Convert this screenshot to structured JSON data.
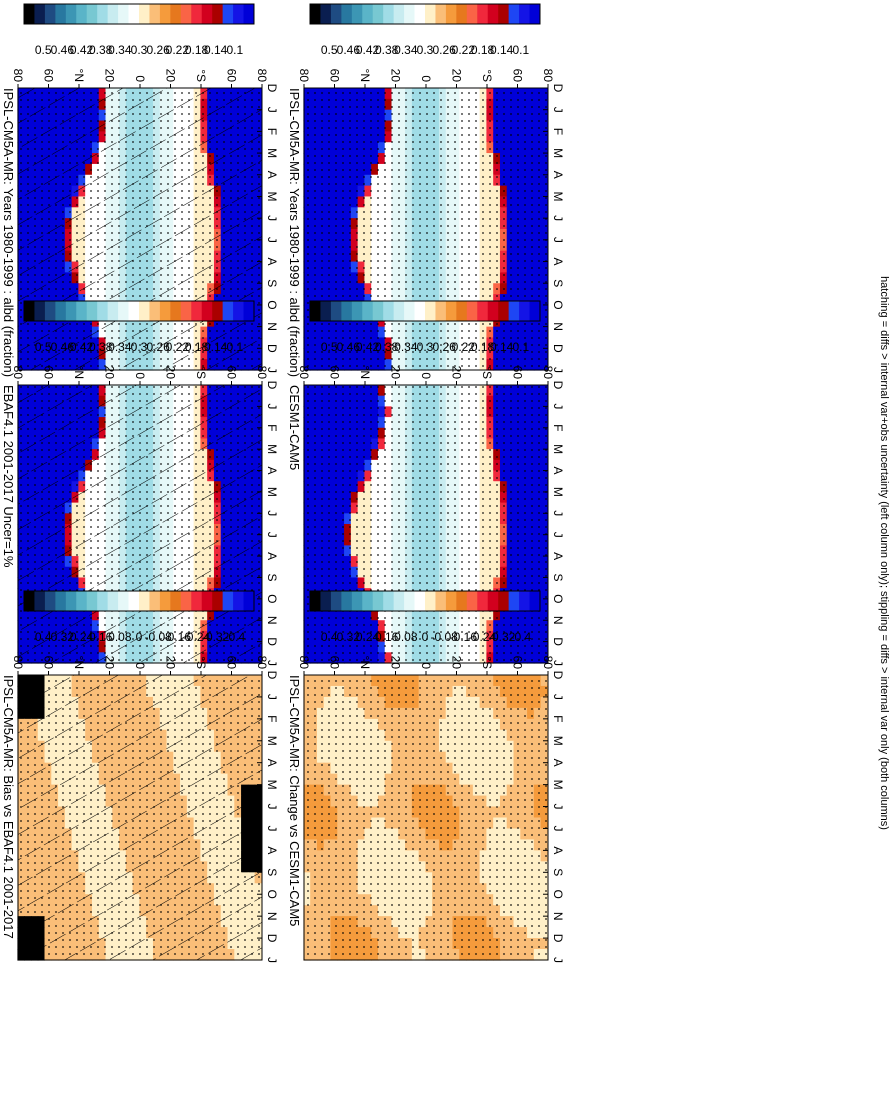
{
  "figure": {
    "footnote": "hatching = diffs > internal var+obs uncertainty (left column only); stippling = diffs > internal var only (both columns)"
  },
  "months": [
    "D",
    "J",
    "F",
    "M",
    "A",
    "M",
    "J",
    "J",
    "A",
    "S",
    "O",
    "N",
    "D",
    "J"
  ],
  "lat_ticks": [
    "80",
    "60",
    "°N",
    "20",
    "0",
    "20",
    "°S",
    "60",
    "80"
  ],
  "colorscales": {
    "albedo": {
      "labels": [
        "0.5",
        "0.46",
        "0.42",
        "0.38",
        "0.34",
        "0.3",
        "0.26",
        "0.22",
        "0.18",
        "0.14",
        "0.1"
      ],
      "colors": [
        "#0000d8",
        "#1414e6",
        "#1e46f4",
        "#aa0000",
        "#d2001e",
        "#f0283c",
        "#fa6446",
        "#e6781e",
        "#f59b3c",
        "#fabe78",
        "#fff0c8",
        "#ffffff",
        "#e6f8f8",
        "#c8ecf0",
        "#a0dce6",
        "#78c8d2",
        "#5ab4c8",
        "#3c96b4",
        "#2878a0",
        "#1e4b82",
        "#0a1e50",
        "#000000"
      ]
    },
    "difference": {
      "labels": [
        "0.4",
        "0.32",
        "0.24",
        "0.16",
        "0.08",
        "0",
        "-0.08",
        "-0.16",
        "-0.24",
        "-0.32",
        "-0.4"
      ],
      "colors": [
        "#0000d8",
        "#1414e6",
        "#1e46f4",
        "#aa0000",
        "#d2001e",
        "#f0283c",
        "#fa6446",
        "#e6781e",
        "#f59b3c",
        "#fabe78",
        "#fff0c8",
        "#ffffff",
        "#e6f8f8",
        "#c8ecf0",
        "#a0dce6",
        "#78c8d2",
        "#5ab4c8",
        "#3c96b4",
        "#2878a0",
        "#1e4b82",
        "#0a1e50",
        "#000000"
      ]
    }
  },
  "chart_data": [
    {
      "type": "heatmap",
      "panel": "left-top",
      "title": "IPSL-CM5A-MR: Years 1980-1999 : albd (fraction)",
      "field": "albedo",
      "x": [
        "D",
        "J",
        "F",
        "M",
        "A",
        "M",
        "J",
        "J",
        "A",
        "S",
        "O",
        "N",
        "D",
        "J"
      ],
      "y": [
        "80",
        "60",
        "°N",
        "20",
        "0",
        "20",
        "°S",
        "60",
        "80"
      ],
      "overlay": "hatching+stippling",
      "hatching": true,
      "stippling": true
    },
    {
      "type": "heatmap",
      "panel": "right-top",
      "title": "IPSL-CM5A-MR: Years 1980-1999 : albd (fraction)",
      "field": "albedo",
      "x": [
        "D",
        "J",
        "F",
        "M",
        "A",
        "M",
        "J",
        "J",
        "A",
        "S",
        "O",
        "N",
        "D",
        "J"
      ],
      "y": [
        "80",
        "60",
        "°N",
        "20",
        "0",
        "20",
        "°S",
        "60",
        "80"
      ],
      "overlay": "stippling",
      "hatching": false,
      "stippling": true
    },
    {
      "type": "heatmap",
      "panel": "left-middle",
      "title": "EBAF4.1 2001-2017 Uncer=1%",
      "field": "albedo",
      "x": [
        "D",
        "J",
        "F",
        "M",
        "A",
        "M",
        "J",
        "J",
        "A",
        "S",
        "O",
        "N",
        "D",
        "J"
      ],
      "y": [
        "80",
        "60",
        "°N",
        "20",
        "0",
        "20",
        "°S",
        "60",
        "80"
      ],
      "overlay": "hatching+stippling",
      "hatching": true,
      "stippling": true
    },
    {
      "type": "heatmap",
      "panel": "right-middle",
      "title": "CESM1-CAM5",
      "field": "albedo",
      "x": [
        "D",
        "J",
        "F",
        "M",
        "A",
        "M",
        "J",
        "J",
        "A",
        "S",
        "O",
        "N",
        "D",
        "J"
      ],
      "y": [
        "80",
        "60",
        "°N",
        "20",
        "0",
        "20",
        "°S",
        "60",
        "80"
      ],
      "overlay": "stippling",
      "hatching": false,
      "stippling": true
    },
    {
      "type": "heatmap",
      "panel": "left-bottom",
      "title": "IPSL-CM5A-MR: Bias vs EBAF4.1 2001-2017",
      "field": "difference",
      "x": [
        "D",
        "J",
        "F",
        "M",
        "A",
        "M",
        "J",
        "J",
        "A",
        "S",
        "O",
        "N",
        "D",
        "J"
      ],
      "y": [
        "80",
        "60",
        "°N",
        "20",
        "0",
        "20",
        "°S",
        "60",
        "80"
      ],
      "overlay": "hatching+stippling",
      "hatching": true,
      "stippling": true
    },
    {
      "type": "heatmap",
      "panel": "right-bottom",
      "title": "IPSL-CM5A-MR: Change vs CESM1-CAM5",
      "field": "difference",
      "x": [
        "D",
        "J",
        "F",
        "M",
        "A",
        "M",
        "J",
        "J",
        "A",
        "S",
        "O",
        "N",
        "D",
        "J"
      ],
      "y": [
        "80",
        "60",
        "°N",
        "20",
        "0",
        "20",
        "°S",
        "60",
        "80"
      ],
      "overlay": "stippling",
      "hatching": false,
      "stippling": true
    }
  ]
}
